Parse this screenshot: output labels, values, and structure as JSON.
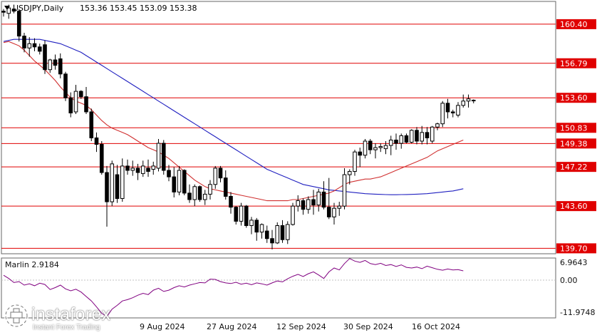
{
  "header": {
    "symbol": "USDJPY,Daily",
    "ohlc": "153.36 153.45 153.09 153.38"
  },
  "logo": {
    "brand": "instaforex",
    "tagline": "Instant Forex Trading"
  },
  "colors": {
    "candle_up": "#ffffff",
    "candle_down": "#000000",
    "level_line": "#e00000",
    "level_label_bg": "#e00000",
    "ma_fast": "#d03030",
    "ma_slow": "#2020c0",
    "oscillator": "#800080"
  },
  "chart_data": [
    {
      "type": "candlestick",
      "title": "USDJPY,Daily",
      "x_labels": [
        "9 Aug 2024",
        "27 Aug 2024",
        "12 Sep 2024",
        "30 Sep 2024",
        "16 Oct 2024"
      ],
      "ylim": [
        139.2,
        162.5
      ],
      "levels": [
        {
          "label": "160.40",
          "value": 160.4
        },
        {
          "label": "156.79",
          "value": 156.79
        },
        {
          "label": "153.60",
          "value": 153.6
        },
        {
          "label": "150.83",
          "value": 150.83
        },
        {
          "label": "149.38",
          "value": 149.38
        },
        {
          "label": "147.22",
          "value": 147.22
        },
        {
          "label": "143.60",
          "value": 143.6
        },
        {
          "label": "139.70",
          "value": 139.7
        }
      ],
      "candles": [
        [
          161.6,
          161.8,
          161.1,
          161.5
        ],
        [
          161.4,
          162.2,
          160.9,
          161.9
        ],
        [
          161.8,
          162.2,
          161.4,
          161.6
        ],
        [
          161.6,
          161.8,
          158.8,
          159.3
        ],
        [
          159.3,
          159.6,
          157.8,
          158.2
        ],
        [
          158.2,
          159.2,
          157.4,
          158.6
        ],
        [
          158.6,
          159.1,
          157.9,
          158.3
        ],
        [
          158.3,
          158.6,
          157.6,
          157.9
        ],
        [
          158.5,
          158.9,
          155.8,
          156.2
        ],
        [
          156.2,
          157.2,
          155.9,
          157.1
        ],
        [
          157.1,
          157.6,
          156.2,
          156.6
        ],
        [
          157.2,
          157.7,
          155.4,
          155.8
        ],
        [
          155.8,
          156.0,
          153.3,
          153.6
        ],
        [
          153.6,
          154.1,
          151.8,
          152.2
        ],
        [
          152.3,
          154.8,
          152.1,
          154.2
        ],
        [
          154.2,
          154.3,
          153.5,
          153.7
        ],
        [
          153.7,
          154.6,
          152.1,
          152.3
        ],
        [
          152.3,
          152.6,
          149.6,
          149.9
        ],
        [
          149.9,
          150.4,
          148.6,
          149.3
        ],
        [
          149.3,
          149.6,
          146.5,
          146.7
        ],
        [
          146.7,
          147.3,
          141.7,
          144.0
        ],
        [
          144.0,
          147.8,
          143.6,
          147.5
        ],
        [
          146.5,
          147.4,
          143.9,
          144.3
        ],
        [
          144.3,
          148.0,
          144.0,
          147.3
        ],
        [
          147.3,
          147.9,
          146.5,
          146.9
        ],
        [
          146.9,
          147.8,
          146.4,
          147.1
        ],
        [
          147.1,
          147.5,
          146.0,
          146.7
        ],
        [
          146.6,
          147.8,
          146.3,
          147.3
        ],
        [
          147.1,
          147.9,
          146.3,
          146.8
        ],
        [
          147.0,
          147.7,
          146.5,
          147.3
        ],
        [
          147.1,
          149.8,
          146.8,
          149.4
        ],
        [
          149.4,
          149.7,
          146.5,
          146.9
        ],
        [
          146.9,
          147.4,
          145.9,
          146.3
        ],
        [
          146.3,
          147.2,
          144.4,
          144.9
        ],
        [
          144.9,
          147.3,
          144.6,
          146.9
        ],
        [
          146.9,
          147.0,
          144.6,
          144.8
        ],
        [
          144.8,
          145.6,
          143.9,
          144.2
        ],
        [
          144.2,
          145.6,
          143.6,
          145.4
        ],
        [
          145.4,
          145.5,
          144.0,
          144.2
        ],
        [
          144.2,
          145.1,
          143.7,
          144.7
        ],
        [
          144.7,
          146.0,
          144.2,
          145.6
        ],
        [
          145.6,
          147.3,
          145.2,
          147.1
        ],
        [
          147.1,
          147.3,
          145.8,
          146.2
        ],
        [
          146.2,
          146.9,
          144.2,
          144.5
        ],
        [
          144.5,
          144.9,
          142.9,
          143.5
        ],
        [
          143.5,
          143.6,
          141.9,
          142.2
        ],
        [
          142.2,
          143.9,
          141.8,
          143.6
        ],
        [
          143.6,
          143.7,
          141.6,
          141.8
        ],
        [
          141.8,
          142.6,
          141.0,
          142.3
        ],
        [
          142.3,
          142.5,
          140.4,
          141.2
        ],
        [
          141.2,
          142.0,
          140.6,
          141.9
        ],
        [
          141.3,
          141.8,
          140.2,
          140.6
        ],
        [
          140.6,
          141.4,
          139.6,
          140.2
        ],
        [
          140.2,
          142.1,
          140.1,
          141.8
        ],
        [
          141.8,
          142.3,
          140.2,
          140.5
        ],
        [
          140.5,
          142.2,
          140.1,
          141.9
        ],
        [
          141.9,
          143.9,
          141.8,
          143.6
        ],
        [
          143.6,
          144.6,
          143.1,
          144.1
        ],
        [
          144.1,
          144.3,
          142.8,
          143.3
        ],
        [
          143.3,
          144.5,
          142.9,
          144.2
        ],
        [
          144.2,
          145.1,
          142.8,
          143.7
        ],
        [
          143.7,
          145.2,
          143.1,
          144.9
        ],
        [
          144.9,
          145.9,
          143.3,
          143.5
        ],
        [
          143.5,
          146.2,
          142.4,
          142.6
        ],
        [
          142.6,
          143.9,
          141.9,
          143.4
        ],
        [
          143.4,
          144.0,
          142.7,
          143.6
        ],
        [
          143.6,
          147.1,
          143.3,
          146.5
        ],
        [
          146.5,
          147.0,
          145.6,
          146.8
        ],
        [
          146.8,
          148.8,
          146.4,
          148.6
        ],
        [
          148.6,
          149.0,
          147.2,
          148.3
        ],
        [
          148.3,
          149.8,
          148.0,
          149.6
        ],
        [
          149.6,
          149.8,
          148.4,
          148.8
        ],
        [
          148.8,
          149.4,
          148.0,
          149.0
        ],
        [
          149.0,
          149.4,
          148.6,
          149.1
        ],
        [
          148.9,
          149.6,
          148.4,
          149.2
        ],
        [
          149.2,
          150.1,
          148.3,
          149.7
        ],
        [
          149.7,
          150.3,
          148.8,
          149.4
        ],
        [
          149.4,
          150.3,
          148.9,
          150.1
        ],
        [
          150.1,
          150.3,
          149.4,
          149.5
        ],
        [
          149.5,
          150.7,
          149.4,
          150.6
        ],
        [
          150.6,
          150.9,
          149.3,
          149.6
        ],
        [
          149.6,
          151.0,
          149.3,
          150.4
        ],
        [
          150.4,
          150.9,
          149.3,
          149.9
        ],
        [
          149.6,
          151.0,
          149.4,
          150.9
        ],
        [
          150.9,
          151.3,
          150.6,
          151.2
        ],
        [
          151.2,
          153.3,
          150.9,
          153.1
        ],
        [
          153.1,
          153.5,
          151.7,
          152.3
        ],
        [
          152.3,
          152.5,
          151.8,
          152.2
        ],
        [
          152.0,
          153.2,
          151.8,
          152.9
        ],
        [
          152.9,
          153.9,
          152.7,
          153.3
        ],
        [
          153.3,
          153.9,
          152.7,
          153.5
        ],
        [
          153.36,
          153.45,
          153.09,
          153.38
        ]
      ],
      "ma_fast": [
        158.7,
        158.8,
        158.6,
        158.4,
        158.0,
        157.5,
        157.0,
        156.6,
        156.2,
        155.7,
        155.2,
        154.6,
        154.1,
        153.6,
        153.3,
        153.1,
        152.9,
        152.5,
        152.0,
        151.5,
        151.1,
        150.8,
        150.6,
        150.4,
        150.2,
        149.9,
        149.6,
        149.3,
        149.0,
        148.8,
        148.6,
        148.3,
        148.0,
        147.6,
        147.2,
        146.8,
        146.4,
        146.0,
        145.7,
        145.4,
        145.2,
        145.1,
        145.0,
        144.9,
        144.8,
        144.7,
        144.6,
        144.5,
        144.4,
        144.3,
        144.2,
        144.1,
        144.1,
        144.1,
        144.1,
        144.1,
        144.2,
        144.2,
        144.3,
        144.4,
        144.5,
        144.6,
        144.7,
        144.8,
        145.0,
        145.3,
        145.6,
        145.8,
        145.9,
        146.0,
        146.1,
        146.1,
        146.2,
        146.3,
        146.5,
        146.7,
        146.9,
        147.1,
        147.3,
        147.5,
        147.7,
        147.9,
        148.1,
        148.4,
        148.7,
        148.9,
        149.1,
        149.3,
        149.5,
        149.7
      ],
      "ma_slow": [
        158.8,
        158.9,
        159.0,
        159.0,
        159.0,
        159.0,
        159.0,
        159.0,
        158.9,
        158.8,
        158.7,
        158.6,
        158.4,
        158.2,
        158.0,
        157.8,
        157.5,
        157.2,
        156.9,
        156.6,
        156.3,
        156.0,
        155.7,
        155.4,
        155.1,
        154.8,
        154.5,
        154.2,
        153.9,
        153.6,
        153.3,
        153.0,
        152.7,
        152.4,
        152.1,
        151.8,
        151.5,
        151.2,
        150.9,
        150.6,
        150.3,
        150.0,
        149.7,
        149.4,
        149.1,
        148.8,
        148.5,
        148.2,
        147.9,
        147.6,
        147.3,
        147.0,
        146.8,
        146.6,
        146.4,
        146.2,
        146.0,
        145.8,
        145.6,
        145.5,
        145.4,
        145.3,
        145.2,
        145.1,
        145.05,
        145.0,
        144.95,
        144.9,
        144.85,
        144.8,
        144.75,
        144.72,
        144.7,
        144.68,
        144.66,
        144.65,
        144.65,
        144.66,
        144.67,
        144.68,
        144.7,
        144.72,
        144.75,
        144.8,
        144.85,
        144.9,
        144.95,
        145.0,
        145.1,
        145.2
      ]
    },
    {
      "type": "line",
      "title": "Marlin 2.9184",
      "y_ticks": [
        "6.9643",
        "0.00",
        "-11.9748"
      ],
      "ylim": [
        -11.9748,
        6.9643
      ],
      "series": [
        {
          "name": "Marlin",
          "values": [
            1.5,
            0.5,
            -0.8,
            -0.5,
            -1.6,
            -1.2,
            -1.8,
            -1.0,
            -1.4,
            -3.0,
            -2.4,
            -1.6,
            -2.8,
            -3.4,
            -2.9,
            -3.8,
            -5.2,
            -6.6,
            -8.5,
            -10.5,
            -11.6,
            -9.2,
            -8.0,
            -6.6,
            -6.2,
            -5.6,
            -4.8,
            -4.2,
            -4.6,
            -3.2,
            -2.6,
            -3.6,
            -3.2,
            -2.4,
            -1.8,
            -2.2,
            -1.6,
            -1.2,
            -0.8,
            -0.9,
            0.3,
            0.2,
            -0.5,
            -0.9,
            -1.1,
            -0.7,
            -1.3,
            -1.0,
            -1.5,
            -0.9,
            -1.2,
            -1.6,
            -0.9,
            -0.3,
            -0.6,
            0.4,
            1.2,
            1.8,
            1.1,
            2.0,
            2.6,
            1.6,
            0.5,
            2.6,
            3.8,
            3.2,
            5.2,
            6.8,
            6.0,
            5.6,
            6.2,
            5.2,
            4.9,
            5.3,
            4.6,
            4.9,
            4.3,
            4.8,
            4.0,
            3.8,
            4.1,
            3.6,
            4.4,
            3.9,
            3.4,
            3.1,
            3.5,
            3.2,
            3.3,
            2.9
          ]
        }
      ]
    }
  ]
}
